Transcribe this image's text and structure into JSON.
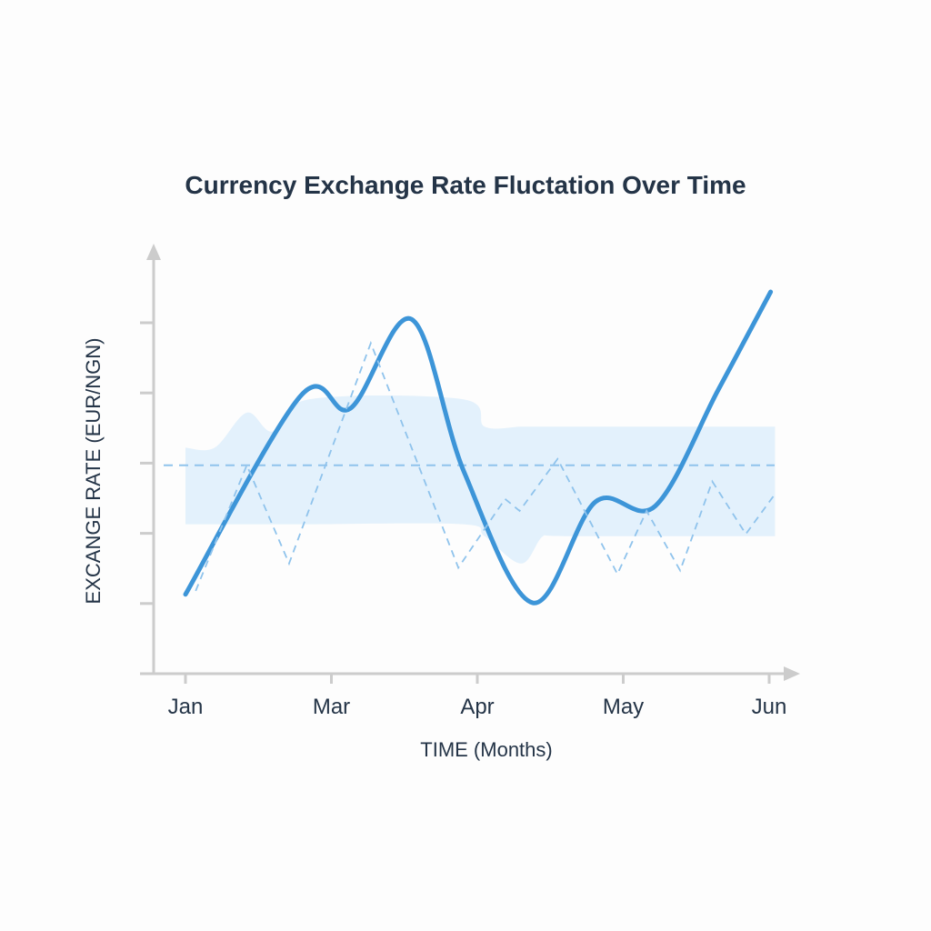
{
  "chart_data": {
    "type": "line",
    "title": "Currency Exchange Rate Fluctation Over Time",
    "xlabel": "TIME (Months)",
    "ylabel": "EXCANGE RATE (EUR/NGN)",
    "x_tick_labels": [
      "Jan",
      "Mar",
      "Apr",
      "May",
      "Jun"
    ],
    "y_tick_count": 5,
    "y_tick_labels": [],
    "xlim": [
      0,
      4
    ],
    "ylim": [
      0,
      6
    ],
    "grid": false,
    "colors": {
      "main": "#3d95d8",
      "secondary": "#8fc3ec",
      "band": "#e3f1fc",
      "axis": "#cccccc"
    },
    "series": [
      {
        "style": "solid",
        "x": [
          0,
          0.79,
          1.13,
          1.55,
          1.91,
          2.38,
          2.81,
          3.22,
          3.65,
          4.01
        ],
        "y": [
          1.13,
          3.96,
          3.78,
          5.05,
          2.87,
          1.01,
          2.45,
          2.39,
          4.04,
          5.44
        ]
      },
      {
        "style": "dashed",
        "x": [
          0.07,
          0.42,
          0.71,
          1.27,
          1.87,
          2.19,
          2.29,
          2.55,
          2.96,
          3.16,
          3.39,
          3.61,
          3.84,
          4.04
        ],
        "y": [
          1.18,
          2.97,
          1.57,
          4.71,
          1.51,
          2.49,
          2.32,
          3.06,
          1.42,
          2.32,
          1.47,
          2.74,
          1.99,
          2.56
        ]
      }
    ],
    "reference_line": {
      "style": "dashed",
      "y": 2.97
    },
    "band": {
      "x": [
        0,
        0.2,
        0.42,
        0.6,
        0.85,
        1.9,
        2.05,
        2.3,
        2.45,
        2.6,
        4.04
      ],
      "upper": [
        3.22,
        3.22,
        3.72,
        3.45,
        3.91,
        3.91,
        3.52,
        3.52,
        3.52,
        3.52,
        3.52
      ],
      "lower": [
        2.13,
        2.13,
        2.13,
        2.13,
        2.13,
        2.13,
        1.96,
        1.57,
        1.96,
        1.96,
        1.96
      ]
    }
  }
}
